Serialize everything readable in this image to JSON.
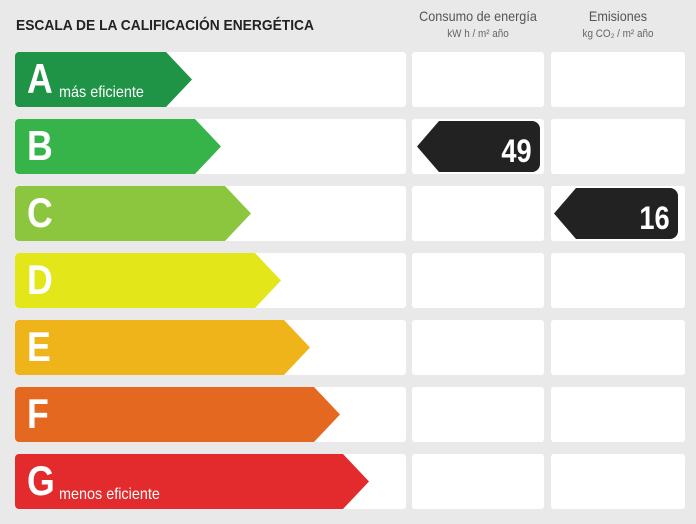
{
  "title": "ESCALA DE LA CALIFICACIÓN ENERGÉTICA",
  "columns": [
    {
      "label": "Consumo de energía",
      "unit": "kW h / m² año"
    },
    {
      "label": "Emisiones",
      "unit": "kg CO₂ / m² año"
    }
  ],
  "ratings": [
    {
      "letter": "A",
      "caption": "más eficiente",
      "color": "#1f9346"
    },
    {
      "letter": "B",
      "caption": "",
      "color": "#36b44a"
    },
    {
      "letter": "C",
      "caption": "",
      "color": "#8cc63e"
    },
    {
      "letter": "D",
      "caption": "",
      "color": "#e3e619"
    },
    {
      "letter": "E",
      "caption": "",
      "color": "#efb41a"
    },
    {
      "letter": "F",
      "caption": "",
      "color": "#e4681f"
    },
    {
      "letter": "G",
      "caption": "menos eficiente",
      "color": "#e32a2c"
    }
  ],
  "energy": {
    "rating": "B",
    "value": "49"
  },
  "emissions": {
    "rating": "C",
    "value": "16"
  }
}
